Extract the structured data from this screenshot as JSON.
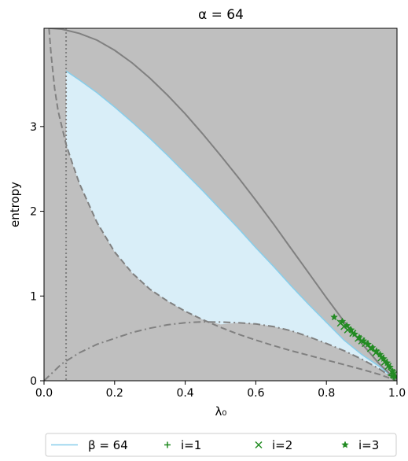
{
  "chart_data": {
    "type": "line",
    "title": "α = 64",
    "xlabel": "λ₀",
    "ylabel": "entropy",
    "xlim": [
      0.0,
      1.0
    ],
    "ylim": [
      0.0,
      4.159
    ],
    "xticks": [
      0.0,
      0.2,
      0.4,
      0.6,
      0.8,
      1.0
    ],
    "xtick_labels": [
      "0.0",
      "0.2",
      "0.4",
      "0.6",
      "0.8",
      "1.0"
    ],
    "yticks": [
      0,
      1,
      2,
      3
    ],
    "ytick_labels": [
      "0",
      "1",
      "2",
      "3"
    ],
    "grid": false,
    "legend_placement": "bottom",
    "background_color": "#bfbfbf",
    "vertical_line_x": 0.0625,
    "region": {
      "name": "β = 64",
      "fill_color": "#d9eef8",
      "edge_color": "#87ceeb",
      "upper": [
        [
          0.0625,
          3.656
        ],
        [
          0.1,
          3.55
        ],
        [
          0.15,
          3.4
        ],
        [
          0.2,
          3.23
        ],
        [
          0.25,
          3.05
        ],
        [
          0.3,
          2.86
        ],
        [
          0.35,
          2.66
        ],
        [
          0.4,
          2.45
        ],
        [
          0.45,
          2.24
        ],
        [
          0.5,
          2.02
        ],
        [
          0.55,
          1.8
        ],
        [
          0.6,
          1.57
        ],
        [
          0.65,
          1.35
        ],
        [
          0.7,
          1.12
        ],
        [
          0.75,
          0.9
        ],
        [
          0.8,
          0.69
        ],
        [
          0.85,
          0.48
        ],
        [
          0.9,
          0.31
        ],
        [
          0.95,
          0.17
        ],
        [
          1.0,
          0.0
        ]
      ],
      "lower": [
        [
          0.0625,
          2.79
        ],
        [
          0.08,
          2.57
        ],
        [
          0.1,
          2.33
        ],
        [
          0.15,
          1.87
        ],
        [
          0.2,
          1.52
        ],
        [
          0.25,
          1.27
        ],
        [
          0.3,
          1.08
        ],
        [
          0.35,
          0.94
        ],
        [
          0.4,
          0.82
        ],
        [
          0.45,
          0.72
        ],
        [
          0.5,
          0.665
        ],
        [
          0.55,
          0.685
        ],
        [
          0.6,
          0.673
        ],
        [
          0.65,
          0.64
        ],
        [
          0.7,
          0.59
        ],
        [
          0.75,
          0.52
        ],
        [
          0.8,
          0.44
        ],
        [
          0.85,
          0.355
        ],
        [
          0.9,
          0.255
        ],
        [
          0.95,
          0.14
        ],
        [
          1.0,
          0.0
        ]
      ]
    },
    "curves": [
      {
        "style": "solid",
        "color": "#808080",
        "points": [
          [
            0.015,
            4.159
          ],
          [
            0.05,
            4.15
          ],
          [
            0.1,
            4.1
          ],
          [
            0.15,
            4.02
          ],
          [
            0.2,
            3.9
          ],
          [
            0.25,
            3.75
          ],
          [
            0.3,
            3.57
          ],
          [
            0.35,
            3.37
          ],
          [
            0.4,
            3.15
          ],
          [
            0.45,
            2.91
          ],
          [
            0.5,
            2.66
          ],
          [
            0.55,
            2.4
          ],
          [
            0.6,
            2.13
          ],
          [
            0.65,
            1.85
          ],
          [
            0.7,
            1.56
          ],
          [
            0.75,
            1.27
          ],
          [
            0.8,
            0.98
          ],
          [
            0.85,
            0.7
          ],
          [
            0.9,
            0.44
          ],
          [
            0.95,
            0.2
          ],
          [
            1.0,
            0.0
          ]
        ]
      },
      {
        "style": "dashed",
        "color": "#808080",
        "points": [
          [
            0.014,
            4.159
          ],
          [
            0.02,
            3.85
          ],
          [
            0.03,
            3.45
          ],
          [
            0.04,
            3.18
          ],
          [
            0.0625,
            2.79
          ],
          [
            0.08,
            2.57
          ],
          [
            0.1,
            2.33
          ],
          [
            0.15,
            1.87
          ],
          [
            0.2,
            1.52
          ],
          [
            0.25,
            1.27
          ],
          [
            0.3,
            1.08
          ],
          [
            0.35,
            0.94
          ],
          [
            0.4,
            0.82
          ],
          [
            0.45,
            0.72
          ],
          [
            0.5,
            0.63
          ],
          [
            0.55,
            0.55
          ],
          [
            0.6,
            0.48
          ],
          [
            0.65,
            0.415
          ],
          [
            0.7,
            0.355
          ],
          [
            0.75,
            0.3
          ],
          [
            0.8,
            0.245
          ],
          [
            0.85,
            0.19
          ],
          [
            0.9,
            0.135
          ],
          [
            0.95,
            0.075
          ],
          [
            1.0,
            0.0
          ]
        ]
      },
      {
        "style": "dashdot",
        "color": "#808080",
        "points": [
          [
            0.0,
            0.0
          ],
          [
            0.05,
            0.2
          ],
          [
            0.1,
            0.33
          ],
          [
            0.15,
            0.43
          ],
          [
            0.2,
            0.5
          ],
          [
            0.25,
            0.57
          ],
          [
            0.3,
            0.62
          ],
          [
            0.35,
            0.66
          ],
          [
            0.4,
            0.685
          ],
          [
            0.45,
            0.695
          ],
          [
            0.5,
            0.693
          ],
          [
            0.55,
            0.685
          ],
          [
            0.6,
            0.67
          ],
          [
            0.65,
            0.64
          ],
          [
            0.7,
            0.59
          ],
          [
            0.75,
            0.52
          ],
          [
            0.8,
            0.44
          ],
          [
            0.85,
            0.355
          ],
          [
            0.9,
            0.255
          ],
          [
            0.95,
            0.14
          ],
          [
            1.0,
            0.0
          ]
        ]
      }
    ],
    "series": [
      {
        "name": "i=1",
        "marker": "plus",
        "color": "#228b22",
        "points": [
          [
            0.985,
            0.06
          ],
          [
            0.99,
            0.05
          ],
          [
            0.992,
            0.04
          ]
        ]
      },
      {
        "name": "i=2",
        "marker": "x",
        "color": "#228b22",
        "points": [
          [
            0.84,
            0.68
          ],
          [
            0.85,
            0.64
          ],
          [
            0.86,
            0.6
          ],
          [
            0.875,
            0.56
          ],
          [
            0.89,
            0.5
          ],
          [
            0.9,
            0.47
          ],
          [
            0.91,
            0.44
          ],
          [
            0.925,
            0.38
          ],
          [
            0.94,
            0.33
          ],
          [
            0.955,
            0.27
          ],
          [
            0.965,
            0.22
          ],
          [
            0.975,
            0.17
          ],
          [
            0.985,
            0.1
          ],
          [
            0.99,
            0.07
          ]
        ]
      },
      {
        "name": "i=3",
        "marker": "star",
        "color": "#228b22",
        "points": [
          [
            0.822,
            0.75
          ],
          [
            0.845,
            0.7
          ],
          [
            0.858,
            0.65
          ],
          [
            0.87,
            0.6
          ],
          [
            0.88,
            0.55
          ],
          [
            0.893,
            0.51
          ],
          [
            0.905,
            0.47
          ],
          [
            0.918,
            0.43
          ],
          [
            0.93,
            0.39
          ],
          [
            0.942,
            0.35
          ],
          [
            0.952,
            0.31
          ],
          [
            0.962,
            0.26
          ],
          [
            0.972,
            0.21
          ],
          [
            0.98,
            0.16
          ],
          [
            0.988,
            0.11
          ],
          [
            0.995,
            0.05
          ]
        ]
      }
    ],
    "legend": [
      {
        "label": "β = 64",
        "kind": "line"
      },
      {
        "label": "i=1",
        "kind": "plus"
      },
      {
        "label": "i=2",
        "kind": "x"
      },
      {
        "label": "i=3",
        "kind": "star"
      }
    ]
  }
}
